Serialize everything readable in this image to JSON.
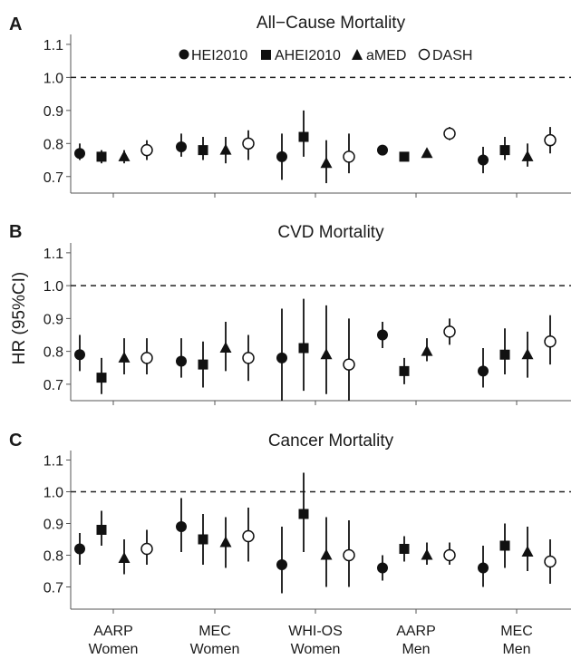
{
  "ylabel": "HR (95%CI)",
  "legend": {
    "position": "top-center",
    "entries": [
      {
        "label": "HEI2010",
        "marker": "filled-circle"
      },
      {
        "label": "AHEI2010",
        "marker": "filled-square"
      },
      {
        "label": "aMED",
        "marker": "filled-triangle"
      },
      {
        "label": "DASH",
        "marker": "open-circle"
      }
    ]
  },
  "groups": [
    {
      "line1": "AARP",
      "line2": "Women"
    },
    {
      "line1": "MEC",
      "line2": "Women"
    },
    {
      "line1": "WHI-OS",
      "line2": "Women"
    },
    {
      "line1": "AARP",
      "line2": "Men"
    },
    {
      "line1": "MEC",
      "line2": "Men"
    }
  ],
  "colors": {
    "marker": "#111111",
    "refline": "#222222",
    "axis": "#555555"
  },
  "chart_data": [
    {
      "type": "scatter",
      "panel": "A",
      "title": "All−Cause Mortality",
      "ylim": [
        0.65,
        1.13
      ],
      "yticks": [
        "0.7",
        "0.8",
        "0.9",
        "1.0",
        "1.1"
      ],
      "reference_line": 1.0,
      "categories": [
        "AARP Women",
        "MEC Women",
        "WHI-OS Women",
        "AARP Men",
        "MEC Men"
      ],
      "series": [
        {
          "name": "HEI2010",
          "values": [
            0.77,
            0.79,
            0.76,
            0.78,
            0.75
          ],
          "ci_low": [
            0.75,
            0.76,
            0.69,
            0.77,
            0.71
          ],
          "ci_high": [
            0.8,
            0.83,
            0.83,
            0.79,
            0.79
          ]
        },
        {
          "name": "AHEI2010",
          "values": [
            0.76,
            0.78,
            0.82,
            0.76,
            0.78
          ],
          "ci_low": [
            0.74,
            0.75,
            0.76,
            0.75,
            0.75
          ],
          "ci_high": [
            0.78,
            0.82,
            0.9,
            0.77,
            0.82
          ]
        },
        {
          "name": "aMED",
          "values": [
            0.76,
            0.78,
            0.74,
            0.77,
            0.76
          ],
          "ci_low": [
            0.74,
            0.74,
            0.68,
            0.76,
            0.73
          ],
          "ci_high": [
            0.78,
            0.82,
            0.81,
            0.78,
            0.8
          ]
        },
        {
          "name": "DASH",
          "values": [
            0.78,
            0.8,
            0.76,
            0.83,
            0.81
          ],
          "ci_low": [
            0.75,
            0.75,
            0.71,
            0.81,
            0.77
          ],
          "ci_high": [
            0.81,
            0.84,
            0.83,
            0.85,
            0.85
          ]
        }
      ]
    },
    {
      "type": "scatter",
      "panel": "B",
      "title": "CVD Mortality",
      "ylim": [
        0.65,
        1.13
      ],
      "yticks": [
        "0.7",
        "0.8",
        "0.9",
        "1.0",
        "1.1"
      ],
      "reference_line": 1.0,
      "categories": [
        "AARP Women",
        "MEC Women",
        "WHI-OS Women",
        "AARP Men",
        "MEC Men"
      ],
      "series": [
        {
          "name": "HEI2010",
          "values": [
            0.79,
            0.77,
            0.78,
            0.85,
            0.74
          ],
          "ci_low": [
            0.74,
            0.72,
            0.65,
            0.81,
            0.69
          ],
          "ci_high": [
            0.85,
            0.84,
            0.93,
            0.89,
            0.81
          ]
        },
        {
          "name": "AHEI2010",
          "values": [
            0.72,
            0.76,
            0.81,
            0.74,
            0.79
          ],
          "ci_low": [
            0.67,
            0.69,
            0.68,
            0.7,
            0.73
          ],
          "ci_high": [
            0.78,
            0.83,
            0.96,
            0.78,
            0.87
          ]
        },
        {
          "name": "aMED",
          "values": [
            0.78,
            0.81,
            0.79,
            0.8,
            0.79
          ],
          "ci_low": [
            0.73,
            0.74,
            0.67,
            0.77,
            0.72
          ],
          "ci_high": [
            0.84,
            0.89,
            0.94,
            0.84,
            0.86
          ]
        },
        {
          "name": "DASH",
          "values": [
            0.78,
            0.78,
            0.76,
            0.86,
            0.83
          ],
          "ci_low": [
            0.73,
            0.71,
            0.65,
            0.82,
            0.76
          ],
          "ci_high": [
            0.84,
            0.85,
            0.9,
            0.9,
            0.91
          ]
        }
      ]
    },
    {
      "type": "scatter",
      "panel": "C",
      "title": "Cancer Mortality",
      "ylim": [
        0.63,
        1.13
      ],
      "yticks": [
        "0.7",
        "0.8",
        "0.9",
        "1.0",
        "1.1"
      ],
      "reference_line": 1.0,
      "categories": [
        "AARP Women",
        "MEC Women",
        "WHI-OS Women",
        "AARP Men",
        "MEC Men"
      ],
      "series": [
        {
          "name": "HEI2010",
          "values": [
            0.82,
            0.89,
            0.77,
            0.76,
            0.76
          ],
          "ci_low": [
            0.77,
            0.81,
            0.68,
            0.72,
            0.7
          ],
          "ci_high": [
            0.87,
            0.98,
            0.89,
            0.8,
            0.83
          ]
        },
        {
          "name": "AHEI2010",
          "values": [
            0.88,
            0.85,
            0.93,
            0.82,
            0.83
          ],
          "ci_low": [
            0.83,
            0.77,
            0.81,
            0.78,
            0.76
          ],
          "ci_high": [
            0.94,
            0.93,
            1.06,
            0.86,
            0.9
          ]
        },
        {
          "name": "aMED",
          "values": [
            0.79,
            0.84,
            0.8,
            0.8,
            0.81
          ],
          "ci_low": [
            0.74,
            0.76,
            0.7,
            0.77,
            0.75
          ],
          "ci_high": [
            0.85,
            0.92,
            0.92,
            0.84,
            0.89
          ]
        },
        {
          "name": "DASH",
          "values": [
            0.82,
            0.86,
            0.8,
            0.8,
            0.78
          ],
          "ci_low": [
            0.77,
            0.78,
            0.7,
            0.77,
            0.71
          ],
          "ci_high": [
            0.88,
            0.95,
            0.91,
            0.84,
            0.85
          ]
        }
      ]
    }
  ]
}
